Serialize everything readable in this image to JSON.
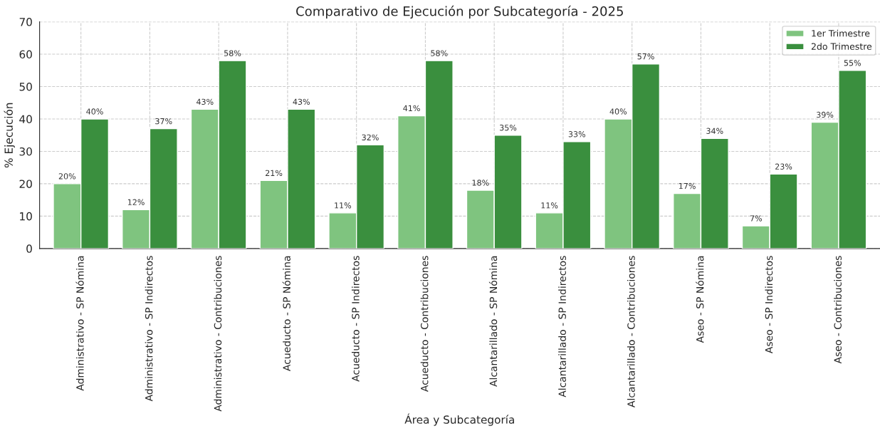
{
  "chart_data": {
    "type": "bar",
    "title": "Comparativo de Ejecución por Subcategoría - 2025",
    "xlabel": "Área y Subcategoría",
    "ylabel": "% Ejecución",
    "categories": [
      "Administrativo - SP Nómina",
      "Administrativo - SP Indirectos",
      "Administrativo - Contribuciones",
      "Acueducto - SP Nómina",
      "Acueducto - SP Indirectos",
      "Acueducto - Contribuciones",
      "Alcantarillado - SP Nómina",
      "Alcantarillado - SP Indirectos",
      "Alcantarillado - Contribuciones",
      "Aseo - SP Nómina",
      "Aseo - SP Indirectos",
      "Aseo - Contribuciones"
    ],
    "series": [
      {
        "name": "1er Trimestre",
        "color": "#7fc47f",
        "values": [
          20,
          12,
          43,
          21,
          11,
          41,
          18,
          11,
          40,
          17,
          7,
          39
        ],
        "value_labels": [
          "20%",
          "12%",
          "43%",
          "21%",
          "11%",
          "41%",
          "18%",
          "11%",
          "40%",
          "17%",
          "7%",
          "39%"
        ]
      },
      {
        "name": "2do Trimestre",
        "color": "#3a8f3e",
        "values": [
          40,
          37,
          58,
          43,
          32,
          58,
          35,
          33,
          57,
          34,
          23,
          55
        ],
        "value_labels": [
          "40%",
          "37%",
          "58%",
          "43%",
          "32%",
          "58%",
          "35%",
          "33%",
          "57%",
          "34%",
          "23%",
          "55%"
        ]
      }
    ],
    "ylim": [
      0,
      70
    ],
    "yticks": [
      0,
      10,
      20,
      30,
      40,
      50,
      60,
      70
    ],
    "grid": true,
    "legend": "top right"
  }
}
